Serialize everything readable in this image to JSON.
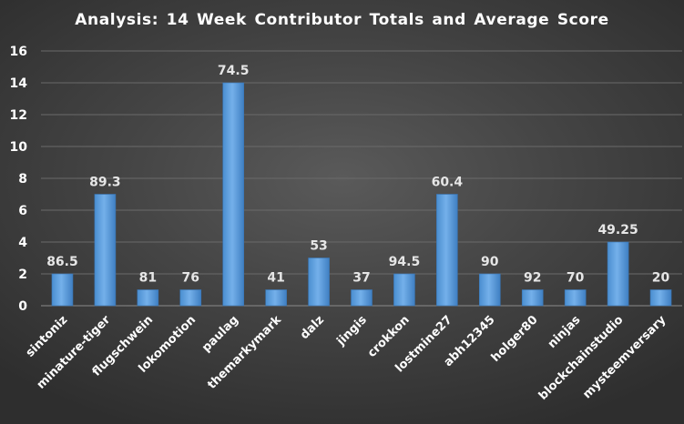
{
  "chart_data": {
    "type": "bar",
    "title": "Analysis:  14 Week Contributor Totals and Average Score",
    "xlabel": "",
    "ylabel": "",
    "ylim": [
      0,
      16
    ],
    "yticks": [
      0,
      2,
      4,
      6,
      8,
      10,
      12,
      14,
      16
    ],
    "grid": true,
    "bar_color": "#5b9bd5",
    "categories": [
      "sintoniz",
      "minature-tiger",
      "flugschwein",
      "lokomotion",
      "paulag",
      "themarkymark",
      "dalz",
      "jingis",
      "crokkon",
      "lostmine27",
      "abh12345",
      "holger80",
      "ninjas",
      "blockchainstudio",
      "mysteemversary"
    ],
    "values": [
      2,
      7,
      1,
      1,
      14,
      1,
      3,
      1,
      2,
      7,
      2,
      1,
      1,
      4,
      1
    ],
    "data_labels": [
      "86.5",
      "89.3",
      "81",
      "76",
      "74.5",
      "41",
      "53",
      "37",
      "94.5",
      "60.4",
      "90",
      "92",
      "70",
      "49.25",
      "20"
    ]
  }
}
